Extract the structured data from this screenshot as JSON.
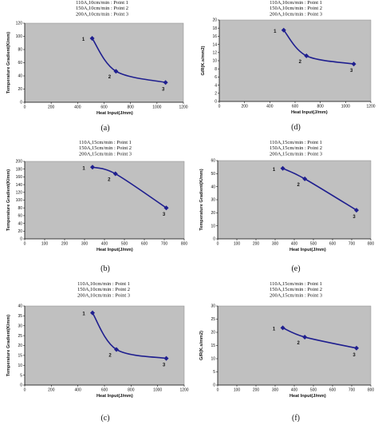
{
  "colors": {
    "plot_bg": "#c0c0c0",
    "series": "#1f1f8f",
    "axis": "#111111"
  },
  "chart_data": [
    {
      "type": "line",
      "panel_label": "(a)",
      "legend": [
        "110A,10cm/min : Point 1",
        "150A,10cm/min : Point 2",
        "200A,10cm/min : Point 3"
      ],
      "xlabel": "Heat Input(J/mm)",
      "ylabel": "Temperature Gradient(K/mm)",
      "xlim": [
        0,
        1200
      ],
      "xticks": [
        0,
        200,
        400,
        600,
        800,
        1000,
        1200
      ],
      "ylim": [
        0,
        120
      ],
      "yticks": [
        0,
        20,
        40,
        60,
        80,
        100,
        120
      ],
      "x": [
        510,
        690,
        1065
      ],
      "y": [
        97,
        47,
        30
      ],
      "point_labels": [
        "1",
        "2",
        "3"
      ]
    },
    {
      "type": "line",
      "panel_label": "(d)",
      "legend": [
        "110A,10cm/min : Point 1",
        "150A,10cm/min : Point 2",
        "200A,10cm/min : Point 3"
      ],
      "xlabel": "Heat Input(J/mm)",
      "ylabel": "G/R(K.s/mm2)",
      "xlim": [
        0,
        1200
      ],
      "xticks": [
        0,
        200,
        400,
        600,
        800,
        1000,
        1200
      ],
      "ylim": [
        0,
        20
      ],
      "yticks": [
        0,
        2,
        4,
        6,
        8,
        10,
        12,
        14,
        16,
        18,
        20
      ],
      "x": [
        510,
        690,
        1065
      ],
      "y": [
        17.5,
        11.2,
        9.2
      ],
      "point_labels": [
        "1",
        "2",
        "3"
      ]
    },
    {
      "type": "line",
      "panel_label": "(b)",
      "legend": [
        "110A,15cm/min : Point 1",
        "150A,15cm/min : Point 2",
        "200A,15cm/min : Point 3"
      ],
      "xlabel": "Heat Input(J/mm)",
      "ylabel": "Temperature Gradient(K/mm)",
      "xlim": [
        0,
        800
      ],
      "xticks": [
        0,
        100,
        200,
        300,
        400,
        500,
        600,
        700,
        800
      ],
      "ylim": [
        0,
        200
      ],
      "yticks": [
        0,
        20,
        40,
        60,
        80,
        100,
        120,
        140,
        160,
        180,
        200
      ],
      "x": [
        340,
        455,
        710
      ],
      "y": [
        185,
        168,
        80
      ],
      "point_labels": [
        "1",
        "2",
        "3"
      ]
    },
    {
      "type": "line",
      "panel_label": "(e)",
      "legend": [
        "110A,15cm/min : Point 1",
        "150A,15cm/min : Point 2",
        "200A,15cm/min : Point 3"
      ],
      "xlabel": "Heat Input(J/mm)",
      "ylabel": "Temperature Gradient(K/mm)",
      "xlim": [
        0,
        800
      ],
      "xticks": [
        0,
        100,
        200,
        300,
        400,
        500,
        600,
        700,
        800
      ],
      "ylim": [
        0,
        60
      ],
      "yticks": [
        0,
        10,
        20,
        30,
        40,
        50,
        60
      ],
      "x": [
        340,
        455,
        725
      ],
      "y": [
        54,
        46,
        22
      ],
      "point_labels": [
        "1",
        "2",
        "3"
      ]
    },
    {
      "type": "line",
      "panel_label": "(c)",
      "legend": [
        "110A,10cm/min : Point 1",
        "150A,10cm/min : Point 2",
        "200A,10cm/min : Point 3"
      ],
      "xlabel": "Heat Input(J/mm)",
      "ylabel": "Temperature Gradient(K/mm)",
      "xlim": [
        0,
        1200
      ],
      "xticks": [
        0,
        200,
        400,
        600,
        800,
        1000,
        1200
      ],
      "ylim": [
        0,
        40
      ],
      "yticks": [
        0,
        5,
        10,
        15,
        20,
        25,
        30,
        35,
        40
      ],
      "x": [
        510,
        690,
        1065
      ],
      "y": [
        36.5,
        18,
        13.5
      ],
      "point_labels": [
        "1",
        "2",
        "3"
      ]
    },
    {
      "type": "line",
      "panel_label": "(f)",
      "legend": [
        "110A,15cm/min : Point 1",
        "150A,15cm/min : Point 2",
        "200A,15cm/min : Point 3"
      ],
      "xlabel": "Heat Input(J/mm)",
      "ylabel": "G/R(K.s/mm2)",
      "xlim": [
        0,
        800
      ],
      "xticks": [
        0,
        100,
        200,
        300,
        400,
        500,
        600,
        700,
        800
      ],
      "ylim": [
        0,
        30
      ],
      "yticks": [
        0,
        5,
        10,
        15,
        20,
        25,
        30
      ],
      "x": [
        340,
        455,
        725
      ],
      "y": [
        21.7,
        18.2,
        14
      ],
      "point_labels": [
        "1",
        "2",
        "3"
      ]
    }
  ]
}
